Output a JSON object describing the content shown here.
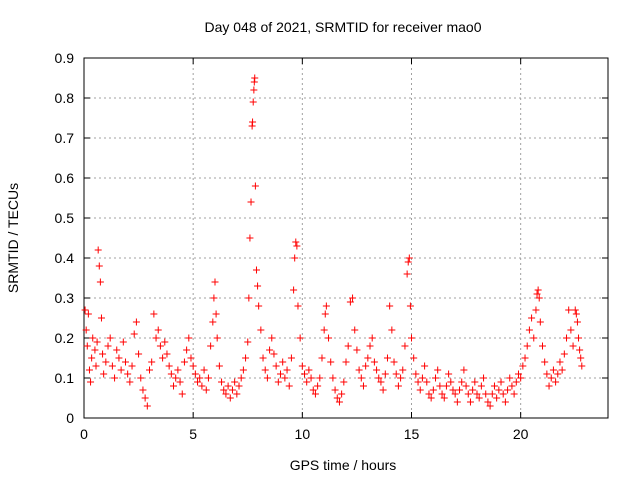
{
  "chart_data": {
    "type": "scatter",
    "title": "Day 048 of 2021, SRMTID for receiver mao0",
    "xlabel": "GPS time / hours",
    "ylabel": "SRMTID / TECUs",
    "xlim": [
      0,
      24
    ],
    "ylim": [
      0,
      0.9
    ],
    "xticks": [
      0,
      5,
      10,
      15,
      20
    ],
    "xtick_labels": [
      "0",
      "5",
      "10",
      "15",
      "20"
    ],
    "yticks": [
      0,
      0.1,
      0.2,
      0.3,
      0.4,
      0.5,
      0.6,
      0.7,
      0.8,
      0.9
    ],
    "ytick_labels": [
      "0",
      "0.1",
      "0.2",
      "0.3",
      "0.4",
      "0.5",
      "0.6",
      "0.7",
      "0.8",
      "0.9"
    ],
    "grid": true,
    "marker": "+",
    "color": "#ff0000",
    "series": [
      {
        "name": "SRMTID",
        "points": [
          [
            0.05,
            0.27
          ],
          [
            0.1,
            0.22
          ],
          [
            0.15,
            0.18
          ],
          [
            0.2,
            0.26
          ],
          [
            0.25,
            0.12
          ],
          [
            0.3,
            0.09
          ],
          [
            0.35,
            0.15
          ],
          [
            0.4,
            0.2
          ],
          [
            0.5,
            0.17
          ],
          [
            0.55,
            0.13
          ],
          [
            0.6,
            0.19
          ],
          [
            0.65,
            0.42
          ],
          [
            0.7,
            0.38
          ],
          [
            0.75,
            0.34
          ],
          [
            0.8,
            0.25
          ],
          [
            0.85,
            0.16
          ],
          [
            0.9,
            0.11
          ],
          [
            1.0,
            0.14
          ],
          [
            1.1,
            0.18
          ],
          [
            1.2,
            0.2
          ],
          [
            1.3,
            0.13
          ],
          [
            1.4,
            0.1
          ],
          [
            1.5,
            0.17
          ],
          [
            1.6,
            0.15
          ],
          [
            1.7,
            0.12
          ],
          [
            1.8,
            0.19
          ],
          [
            1.9,
            0.14
          ],
          [
            2.0,
            0.11
          ],
          [
            2.1,
            0.09
          ],
          [
            2.2,
            0.13
          ],
          [
            2.3,
            0.21
          ],
          [
            2.4,
            0.24
          ],
          [
            2.5,
            0.16
          ],
          [
            2.6,
            0.1
          ],
          [
            2.7,
            0.07
          ],
          [
            2.8,
            0.05
          ],
          [
            2.9,
            0.03
          ],
          [
            3.0,
            0.12
          ],
          [
            3.1,
            0.14
          ],
          [
            3.2,
            0.26
          ],
          [
            3.3,
            0.2
          ],
          [
            3.4,
            0.22
          ],
          [
            3.5,
            0.18
          ],
          [
            3.6,
            0.15
          ],
          [
            3.7,
            0.19
          ],
          [
            3.8,
            0.16
          ],
          [
            3.9,
            0.13
          ],
          [
            4.0,
            0.11
          ],
          [
            4.1,
            0.08
          ],
          [
            4.2,
            0.1
          ],
          [
            4.3,
            0.12
          ],
          [
            4.4,
            0.09
          ],
          [
            4.5,
            0.06
          ],
          [
            4.6,
            0.14
          ],
          [
            4.7,
            0.17
          ],
          [
            4.8,
            0.2
          ],
          [
            4.9,
            0.15
          ],
          [
            5.0,
            0.13
          ],
          [
            5.1,
            0.11
          ],
          [
            5.2,
            0.09
          ],
          [
            5.3,
            0.1
          ],
          [
            5.4,
            0.08
          ],
          [
            5.5,
            0.12
          ],
          [
            5.6,
            0.07
          ],
          [
            5.7,
            0.1
          ],
          [
            5.8,
            0.18
          ],
          [
            5.9,
            0.24
          ],
          [
            5.95,
            0.3
          ],
          [
            6.0,
            0.34
          ],
          [
            6.05,
            0.26
          ],
          [
            6.1,
            0.2
          ],
          [
            6.2,
            0.13
          ],
          [
            6.3,
            0.09
          ],
          [
            6.4,
            0.07
          ],
          [
            6.5,
            0.06
          ],
          [
            6.6,
            0.08
          ],
          [
            6.7,
            0.05
          ],
          [
            6.8,
            0.07
          ],
          [
            6.9,
            0.09
          ],
          [
            7.0,
            0.06
          ],
          [
            7.1,
            0.08
          ],
          [
            7.2,
            0.1
          ],
          [
            7.3,
            0.12
          ],
          [
            7.4,
            0.15
          ],
          [
            7.5,
            0.19
          ],
          [
            7.55,
            0.3
          ],
          [
            7.6,
            0.45
          ],
          [
            7.65,
            0.54
          ],
          [
            7.7,
            0.73
          ],
          [
            7.72,
            0.74
          ],
          [
            7.75,
            0.79
          ],
          [
            7.78,
            0.82
          ],
          [
            7.8,
            0.84
          ],
          [
            7.82,
            0.85
          ],
          [
            7.85,
            0.58
          ],
          [
            7.9,
            0.37
          ],
          [
            7.95,
            0.33
          ],
          [
            8.0,
            0.28
          ],
          [
            8.1,
            0.22
          ],
          [
            8.2,
            0.15
          ],
          [
            8.3,
            0.12
          ],
          [
            8.4,
            0.1
          ],
          [
            8.5,
            0.17
          ],
          [
            8.6,
            0.2
          ],
          [
            8.7,
            0.16
          ],
          [
            8.8,
            0.13
          ],
          [
            8.9,
            0.09
          ],
          [
            9.0,
            0.11
          ],
          [
            9.1,
            0.14
          ],
          [
            9.2,
            0.1
          ],
          [
            9.3,
            0.12
          ],
          [
            9.4,
            0.08
          ],
          [
            9.5,
            0.15
          ],
          [
            9.6,
            0.32
          ],
          [
            9.65,
            0.4
          ],
          [
            9.7,
            0.44
          ],
          [
            9.75,
            0.43
          ],
          [
            9.8,
            0.28
          ],
          [
            9.9,
            0.2
          ],
          [
            10.0,
            0.13
          ],
          [
            10.1,
            0.11
          ],
          [
            10.2,
            0.09
          ],
          [
            10.3,
            0.12
          ],
          [
            10.4,
            0.1
          ],
          [
            10.5,
            0.07
          ],
          [
            10.6,
            0.06
          ],
          [
            10.7,
            0.08
          ],
          [
            10.8,
            0.1
          ],
          [
            10.9,
            0.15
          ],
          [
            11.0,
            0.22
          ],
          [
            11.05,
            0.26
          ],
          [
            11.1,
            0.28
          ],
          [
            11.2,
            0.2
          ],
          [
            11.3,
            0.14
          ],
          [
            11.4,
            0.1
          ],
          [
            11.5,
            0.07
          ],
          [
            11.6,
            0.05
          ],
          [
            11.7,
            0.04
          ],
          [
            11.8,
            0.06
          ],
          [
            11.9,
            0.09
          ],
          [
            12.0,
            0.14
          ],
          [
            12.1,
            0.18
          ],
          [
            12.2,
            0.29
          ],
          [
            12.3,
            0.3
          ],
          [
            12.4,
            0.22
          ],
          [
            12.5,
            0.17
          ],
          [
            12.6,
            0.12
          ],
          [
            12.7,
            0.1
          ],
          [
            12.8,
            0.08
          ],
          [
            12.9,
            0.13
          ],
          [
            13.0,
            0.15
          ],
          [
            13.1,
            0.18
          ],
          [
            13.2,
            0.2
          ],
          [
            13.3,
            0.14
          ],
          [
            13.4,
            0.12
          ],
          [
            13.5,
            0.1
          ],
          [
            13.6,
            0.09
          ],
          [
            13.7,
            0.07
          ],
          [
            13.8,
            0.11
          ],
          [
            13.9,
            0.15
          ],
          [
            14.0,
            0.28
          ],
          [
            14.1,
            0.22
          ],
          [
            14.2,
            0.14
          ],
          [
            14.3,
            0.11
          ],
          [
            14.4,
            0.08
          ],
          [
            14.5,
            0.1
          ],
          [
            14.6,
            0.12
          ],
          [
            14.7,
            0.18
          ],
          [
            14.8,
            0.36
          ],
          [
            14.85,
            0.39
          ],
          [
            14.9,
            0.4
          ],
          [
            14.95,
            0.28
          ],
          [
            15.0,
            0.2
          ],
          [
            15.1,
            0.15
          ],
          [
            15.2,
            0.11
          ],
          [
            15.3,
            0.09
          ],
          [
            15.4,
            0.07
          ],
          [
            15.5,
            0.1
          ],
          [
            15.6,
            0.13
          ],
          [
            15.7,
            0.09
          ],
          [
            15.8,
            0.06
          ],
          [
            15.9,
            0.05
          ],
          [
            16.0,
            0.07
          ],
          [
            16.1,
            0.1
          ],
          [
            16.2,
            0.12
          ],
          [
            16.3,
            0.08
          ],
          [
            16.4,
            0.06
          ],
          [
            16.5,
            0.05
          ],
          [
            16.6,
            0.08
          ],
          [
            16.7,
            0.11
          ],
          [
            16.8,
            0.09
          ],
          [
            16.9,
            0.07
          ],
          [
            17.0,
            0.06
          ],
          [
            17.1,
            0.04
          ],
          [
            17.2,
            0.07
          ],
          [
            17.3,
            0.09
          ],
          [
            17.4,
            0.12
          ],
          [
            17.5,
            0.08
          ],
          [
            17.6,
            0.06
          ],
          [
            17.7,
            0.04
          ],
          [
            17.8,
            0.07
          ],
          [
            17.9,
            0.09
          ],
          [
            18.0,
            0.06
          ],
          [
            18.1,
            0.05
          ],
          [
            18.2,
            0.08
          ],
          [
            18.3,
            0.1
          ],
          [
            18.4,
            0.06
          ],
          [
            18.5,
            0.04
          ],
          [
            18.6,
            0.03
          ],
          [
            18.7,
            0.06
          ],
          [
            18.8,
            0.08
          ],
          [
            18.9,
            0.05
          ],
          [
            19.0,
            0.07
          ],
          [
            19.1,
            0.09
          ],
          [
            19.2,
            0.06
          ],
          [
            19.3,
            0.04
          ],
          [
            19.4,
            0.07
          ],
          [
            19.5,
            0.1
          ],
          [
            19.6,
            0.08
          ],
          [
            19.7,
            0.06
          ],
          [
            19.8,
            0.09
          ],
          [
            19.9,
            0.11
          ],
          [
            20.0,
            0.1
          ],
          [
            20.1,
            0.13
          ],
          [
            20.2,
            0.15
          ],
          [
            20.3,
            0.18
          ],
          [
            20.4,
            0.22
          ],
          [
            20.5,
            0.25
          ],
          [
            20.6,
            0.2
          ],
          [
            20.7,
            0.27
          ],
          [
            20.75,
            0.31
          ],
          [
            20.8,
            0.32
          ],
          [
            20.85,
            0.3
          ],
          [
            20.9,
            0.24
          ],
          [
            21.0,
            0.18
          ],
          [
            21.1,
            0.14
          ],
          [
            21.2,
            0.11
          ],
          [
            21.3,
            0.08
          ],
          [
            21.4,
            0.1
          ],
          [
            21.5,
            0.12
          ],
          [
            21.6,
            0.09
          ],
          [
            21.7,
            0.11
          ],
          [
            21.8,
            0.14
          ],
          [
            21.9,
            0.12
          ],
          [
            22.0,
            0.16
          ],
          [
            22.1,
            0.2
          ],
          [
            22.2,
            0.27
          ],
          [
            22.3,
            0.22
          ],
          [
            22.4,
            0.18
          ],
          [
            22.5,
            0.27
          ],
          [
            22.55,
            0.26
          ],
          [
            22.6,
            0.24
          ],
          [
            22.65,
            0.2
          ],
          [
            22.7,
            0.17
          ],
          [
            22.75,
            0.15
          ],
          [
            22.8,
            0.13
          ]
        ]
      }
    ]
  }
}
